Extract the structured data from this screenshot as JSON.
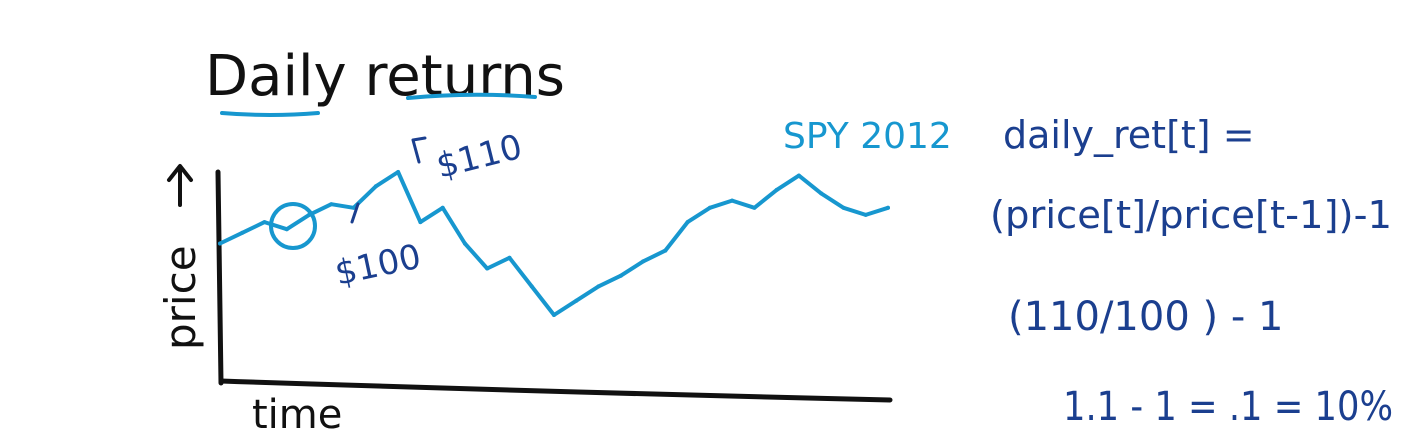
{
  "colors": {
    "ink": "#111111",
    "series": "#1797cf",
    "annotation": "#1b3f8f",
    "underline": "#1797cf"
  },
  "chart_data": {
    "type": "line",
    "title": "Daily returns",
    "xlabel": "time",
    "ylabel": "price",
    "grid": false,
    "legend": "none",
    "series": [
      {
        "name": "SPY 2012",
        "x": [
          0,
          1,
          2,
          3,
          4,
          5,
          6,
          7,
          8,
          9,
          10,
          11,
          12,
          13,
          14,
          15,
          16,
          17,
          18,
          19,
          20,
          21,
          22,
          23,
          24,
          25,
          26,
          27,
          28,
          29,
          30
        ],
        "values": [
          100,
          103,
          106,
          104,
          108,
          111,
          110,
          116,
          120,
          106,
          110,
          100,
          93,
          96,
          88,
          80,
          84,
          88,
          91,
          95,
          98,
          106,
          110,
          112,
          110,
          115,
          119,
          114,
          110,
          108,
          110
        ]
      }
    ],
    "annotations": [
      {
        "label": "$100",
        "x": 4,
        "y": 110
      },
      {
        "label": "$110",
        "x": 8,
        "y": 120
      }
    ]
  },
  "formula": {
    "line1": "daily_ret[t] =",
    "line2": "(price[t]/price[t-1])-1",
    "line3": "(110/100 ) - 1",
    "line4": "1.1 - 1 = .1 = 10%"
  }
}
